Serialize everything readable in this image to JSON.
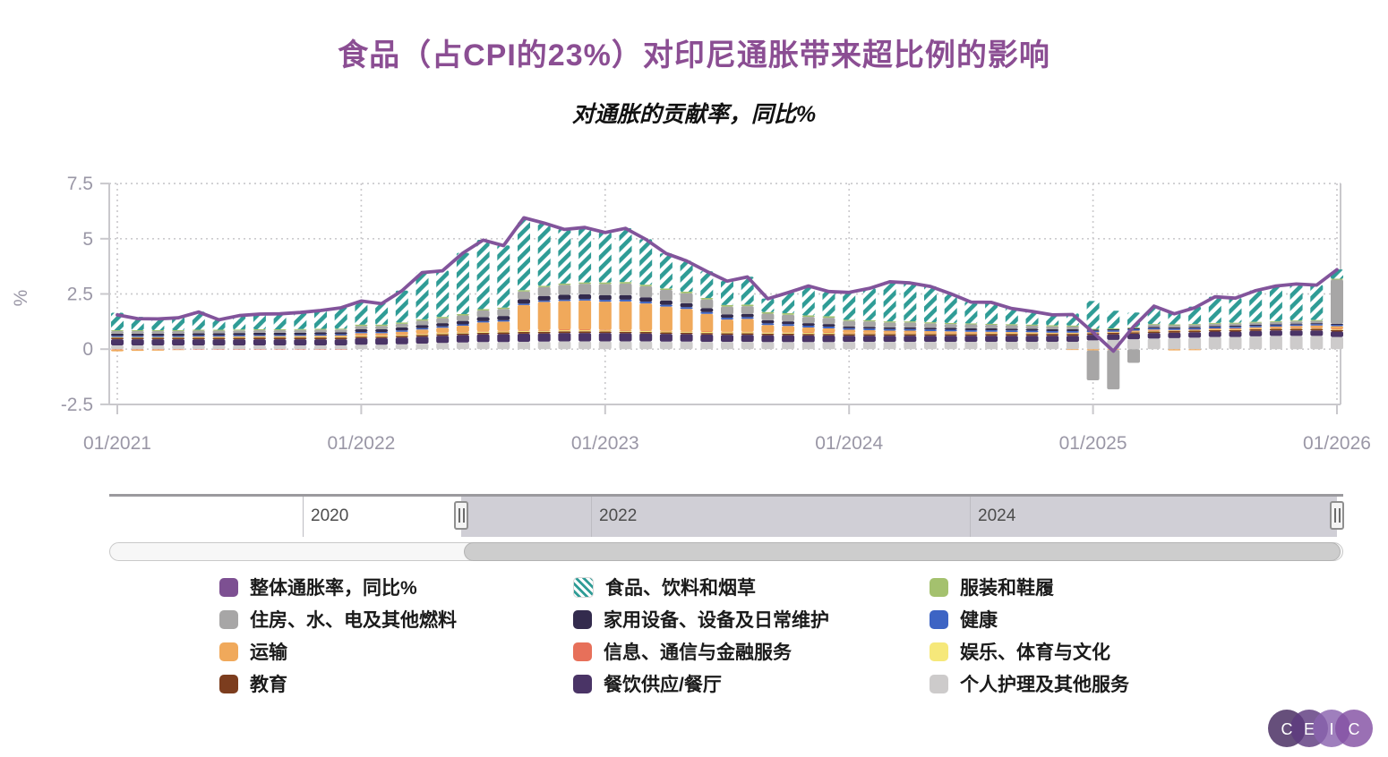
{
  "title": "食品（占CPI的23%）对印尼通胀带来超比例的影响",
  "subtitle": "对通胀的贡献率，同比%",
  "colors": {
    "title": "#8B4E93",
    "axis_label": "#9A97A6",
    "axis_line": "#C9C8CC",
    "grid": "#CCCBCE",
    "line": "#82549B",
    "line_legend_swatch": "#7D5092"
  },
  "chart_data": {
    "type": "bar",
    "stacked": true,
    "title": "食品（占CPI的23%）对印尼通胀带来超比例的影响",
    "subtitle": "对通胀的贡献率，同比%",
    "ylabel": "%",
    "ylim": [
      -2.5,
      7.5
    ],
    "y_ticks": [
      "7.5",
      "5",
      "2.5",
      "0",
      "-2.5"
    ],
    "y_tick_values": [
      7.5,
      5,
      2.5,
      0,
      -2.5
    ],
    "x_ticks": [
      "01/2021",
      "01/2022",
      "01/2023",
      "01/2024",
      "01/2025",
      "01/2026"
    ],
    "x_tick_indices": [
      0,
      12,
      24,
      36,
      48,
      60
    ],
    "grid": "dotted",
    "categories": [
      "01/2021",
      "02/2021",
      "03/2021",
      "04/2021",
      "05/2021",
      "06/2021",
      "07/2021",
      "08/2021",
      "09/2021",
      "10/2021",
      "11/2021",
      "12/2021",
      "01/2022",
      "02/2022",
      "03/2022",
      "04/2022",
      "05/2022",
      "06/2022",
      "07/2022",
      "08/2022",
      "09/2022",
      "10/2022",
      "11/2022",
      "12/2022",
      "01/2023",
      "02/2023",
      "03/2023",
      "04/2023",
      "05/2023",
      "06/2023",
      "07/2023",
      "08/2023",
      "09/2023",
      "10/2023",
      "11/2023",
      "12/2023",
      "01/2024",
      "02/2024",
      "03/2024",
      "04/2024",
      "05/2024",
      "06/2024",
      "07/2024",
      "08/2024",
      "09/2024",
      "10/2024",
      "11/2024",
      "12/2024",
      "01/2025",
      "02/2025",
      "03/2025",
      "04/2025",
      "05/2025",
      "06/2025",
      "07/2025",
      "08/2025",
      "09/2025",
      "10/2025",
      "11/2025",
      "12/2025",
      "01/2026"
    ],
    "line": {
      "id": "headline",
      "name": "整体通胀率，同比%",
      "color": "#82549B",
      "legend_swatch": "#7D5092",
      "values": [
        1.55,
        1.38,
        1.37,
        1.42,
        1.68,
        1.33,
        1.52,
        1.59,
        1.6,
        1.66,
        1.75,
        1.87,
        2.18,
        2.06,
        2.64,
        3.47,
        3.55,
        4.35,
        4.94,
        4.69,
        5.95,
        5.71,
        5.42,
        5.51,
        5.28,
        5.47,
        4.97,
        4.33,
        4.0,
        3.52,
        3.08,
        3.27,
        2.28,
        2.56,
        2.86,
        2.61,
        2.57,
        2.75,
        3.05,
        3.0,
        2.84,
        2.51,
        2.13,
        2.12,
        1.84,
        1.71,
        1.55,
        1.57,
        0.76,
        -0.09,
        1.03,
        1.95,
        1.6,
        1.87,
        2.37,
        2.31,
        2.65,
        2.86,
        2.95,
        2.9,
        3.6
      ]
    },
    "stack_order_bottom_to_top": [
      "personal",
      "restaurants",
      "education",
      "recreation",
      "info",
      "transport",
      "health",
      "household",
      "housing",
      "clothing",
      "food"
    ],
    "series": [
      {
        "id": "food",
        "name": "食品、饮料和烟草",
        "color": "#2F9C96",
        "hatch": true,
        "values": [
          0.79,
          0.6,
          0.58,
          0.6,
          0.82,
          0.47,
          0.65,
          0.71,
          0.72,
          0.77,
          0.85,
          0.96,
          1.08,
          0.96,
          1.44,
          2.13,
          2.1,
          2.77,
          3.14,
          2.82,
          3.29,
          2.85,
          2.46,
          2.5,
          2.27,
          2.44,
          2.06,
          1.59,
          1.41,
          1.21,
          1.09,
          1.26,
          0.61,
          0.94,
          1.34,
          1.13,
          1.25,
          1.45,
          1.8,
          1.75,
          1.63,
          1.33,
          0.97,
          0.98,
          0.72,
          0.61,
          0.48,
          0.55,
          1.26,
          0.8,
          0.67,
          0.82,
          0.55,
          0.79,
          1.19,
          1.12,
          1.42,
          1.6,
          1.66,
          1.59,
          0.42
        ]
      },
      {
        "id": "clothing",
        "name": "服装和鞋履",
        "color": "#A4C16E",
        "hatch": false,
        "values": [
          0.04,
          0.04,
          0.04,
          0.04,
          0.04,
          0.04,
          0.04,
          0.04,
          0.04,
          0.04,
          0.04,
          0.04,
          0.06,
          0.06,
          0.06,
          0.06,
          0.06,
          0.06,
          0.06,
          0.06,
          0.06,
          0.06,
          0.06,
          0.06,
          0.07,
          0.07,
          0.07,
          0.07,
          0.07,
          0.07,
          0.07,
          0.07,
          0.07,
          0.07,
          0.07,
          0.07,
          0.05,
          0.05,
          0.05,
          0.05,
          0.05,
          0.05,
          0.05,
          0.05,
          0.05,
          0.05,
          0.05,
          0.05,
          0.04,
          0.04,
          0.04,
          0.04,
          0.04,
          0.04,
          0.04,
          0.04,
          0.04,
          0.04,
          0.04,
          0.04,
          0.04
        ]
      },
      {
        "id": "housing",
        "name": "住房、水、电及其他燃料",
        "color": "#A7A6A6",
        "hatch": false,
        "values": [
          0.12,
          0.12,
          0.12,
          0.12,
          0.12,
          0.12,
          0.12,
          0.12,
          0.12,
          0.12,
          0.12,
          0.12,
          0.15,
          0.15,
          0.17,
          0.2,
          0.22,
          0.25,
          0.3,
          0.32,
          0.35,
          0.4,
          0.45,
          0.48,
          0.5,
          0.52,
          0.5,
          0.48,
          0.45,
          0.4,
          0.35,
          0.35,
          0.3,
          0.3,
          0.28,
          0.28,
          0.25,
          0.25,
          0.22,
          0.22,
          0.2,
          0.18,
          0.18,
          0.16,
          0.15,
          0.14,
          0.13,
          0.12,
          -1.35,
          -1.78,
          -0.62,
          0.1,
          0.1,
          0.1,
          0.1,
          0.1,
          0.1,
          0.1,
          0.1,
          0.1,
          2.0
        ]
      },
      {
        "id": "household",
        "name": "家用设备、设备及日常维护",
        "color": "#332B4D",
        "hatch": false,
        "values": [
          0.1,
          0.1,
          0.1,
          0.1,
          0.1,
          0.1,
          0.1,
          0.1,
          0.1,
          0.1,
          0.1,
          0.1,
          0.12,
          0.12,
          0.13,
          0.14,
          0.15,
          0.16,
          0.18,
          0.19,
          0.2,
          0.21,
          0.22,
          0.22,
          0.22,
          0.21,
          0.2,
          0.19,
          0.18,
          0.17,
          0.16,
          0.15,
          0.14,
          0.13,
          0.12,
          0.12,
          0.08,
          0.08,
          0.08,
          0.08,
          0.08,
          0.08,
          0.08,
          0.08,
          0.08,
          0.08,
          0.08,
          0.08,
          0.05,
          0.05,
          0.05,
          0.05,
          0.05,
          0.05,
          0.05,
          0.05,
          0.05,
          0.05,
          0.05,
          0.05,
          0.05
        ]
      },
      {
        "id": "health",
        "name": "健康",
        "color": "#3D64C4",
        "hatch": false,
        "values": [
          0.05,
          0.05,
          0.05,
          0.05,
          0.05,
          0.05,
          0.05,
          0.05,
          0.05,
          0.05,
          0.05,
          0.05,
          0.06,
          0.06,
          0.06,
          0.06,
          0.06,
          0.06,
          0.06,
          0.06,
          0.06,
          0.06,
          0.06,
          0.06,
          0.08,
          0.08,
          0.08,
          0.08,
          0.08,
          0.08,
          0.08,
          0.08,
          0.08,
          0.08,
          0.08,
          0.08,
          0.07,
          0.07,
          0.07,
          0.07,
          0.07,
          0.07,
          0.07,
          0.07,
          0.07,
          0.07,
          0.07,
          0.07,
          0.06,
          0.06,
          0.06,
          0.06,
          0.06,
          0.06,
          0.06,
          0.06,
          0.06,
          0.06,
          0.06,
          0.06,
          0.06
        ]
      },
      {
        "id": "transport",
        "name": "运输",
        "color": "#F0A95B",
        "hatch": false,
        "values": [
          -0.08,
          -0.06,
          -0.05,
          -0.02,
          0.02,
          0.02,
          0.03,
          0.03,
          0.03,
          0.04,
          0.05,
          0.06,
          0.08,
          0.08,
          0.12,
          0.18,
          0.22,
          0.28,
          0.4,
          0.42,
          1.15,
          1.28,
          1.3,
          1.32,
          1.28,
          1.3,
          1.22,
          1.1,
          1.0,
          0.8,
          0.55,
          0.58,
          0.32,
          0.28,
          0.22,
          0.18,
          0.14,
          0.12,
          0.1,
          0.1,
          0.08,
          0.07,
          0.05,
          0.04,
          0.03,
          0.02,
          0.0,
          -0.04,
          -0.06,
          -0.04,
          0.02,
          0.04,
          -0.06,
          -0.05,
          0.02,
          0.03,
          0.04,
          0.05,
          0.08,
          0.1,
          0.12
        ]
      },
      {
        "id": "info",
        "name": "信息、通信与金融服务",
        "color": "#E7705A",
        "hatch": false,
        "values": [
          -0.02,
          -0.02,
          -0.02,
          -0.02,
          -0.02,
          -0.02,
          -0.02,
          -0.02,
          -0.02,
          -0.02,
          -0.02,
          -0.02,
          0.01,
          0.01,
          0.01,
          0.01,
          0.01,
          0.01,
          0.01,
          0.01,
          0.01,
          0.01,
          0.01,
          0.01,
          0.01,
          0.01,
          0.01,
          0.01,
          0.01,
          0.01,
          0.01,
          0.01,
          0.01,
          0.01,
          0.01,
          0.01,
          0.01,
          0.01,
          0.01,
          0.01,
          0.01,
          0.01,
          0.01,
          0.01,
          0.01,
          0.01,
          0.01,
          0.01,
          0.01,
          0.01,
          0.01,
          0.01,
          0.01,
          0.01,
          0.01,
          0.01,
          0.01,
          0.01,
          0.01,
          0.01,
          0.01
        ]
      },
      {
        "id": "recreation",
        "name": "娱乐、体育与文化",
        "color": "#F6E87A",
        "hatch": false,
        "values": [
          0.03,
          0.03,
          0.03,
          0.03,
          0.03,
          0.03,
          0.03,
          0.03,
          0.03,
          0.03,
          0.03,
          0.03,
          0.06,
          0.06,
          0.06,
          0.06,
          0.06,
          0.06,
          0.06,
          0.06,
          0.06,
          0.06,
          0.06,
          0.06,
          0.06,
          0.06,
          0.06,
          0.06,
          0.06,
          0.06,
          0.06,
          0.06,
          0.06,
          0.06,
          0.06,
          0.06,
          0.05,
          0.05,
          0.05,
          0.05,
          0.05,
          0.05,
          0.05,
          0.05,
          0.05,
          0.05,
          0.05,
          0.05,
          0.04,
          0.04,
          0.04,
          0.04,
          0.04,
          0.04,
          0.04,
          0.04,
          0.04,
          0.04,
          0.04,
          0.04,
          0.04
        ]
      },
      {
        "id": "education",
        "name": "教育",
        "color": "#7C3D1E",
        "hatch": false,
        "values": [
          0.07,
          0.07,
          0.07,
          0.07,
          0.07,
          0.07,
          0.07,
          0.08,
          0.08,
          0.08,
          0.08,
          0.08,
          0.07,
          0.07,
          0.07,
          0.07,
          0.07,
          0.07,
          0.07,
          0.08,
          0.08,
          0.08,
          0.08,
          0.08,
          0.07,
          0.07,
          0.07,
          0.07,
          0.07,
          0.07,
          0.07,
          0.07,
          0.07,
          0.07,
          0.07,
          0.07,
          0.07,
          0.07,
          0.07,
          0.07,
          0.07,
          0.07,
          0.07,
          0.08,
          0.08,
          0.08,
          0.08,
          0.08,
          0.07,
          0.07,
          0.07,
          0.07,
          0.07,
          0.07,
          0.07,
          0.07,
          0.07,
          0.07,
          0.07,
          0.07,
          0.07
        ]
      },
      {
        "id": "restaurants",
        "name": "餐饮供应/餐厅",
        "color": "#4A3466",
        "hatch": false,
        "values": [
          0.28,
          0.28,
          0.28,
          0.28,
          0.28,
          0.28,
          0.28,
          0.28,
          0.28,
          0.28,
          0.28,
          0.28,
          0.3,
          0.3,
          0.31,
          0.32,
          0.33,
          0.34,
          0.35,
          0.36,
          0.37,
          0.37,
          0.38,
          0.38,
          0.38,
          0.37,
          0.36,
          0.35,
          0.34,
          0.33,
          0.32,
          0.32,
          0.31,
          0.31,
          0.3,
          0.3,
          0.28,
          0.28,
          0.28,
          0.28,
          0.28,
          0.28,
          0.28,
          0.28,
          0.28,
          0.28,
          0.28,
          0.28,
          0.25,
          0.25,
          0.25,
          0.25,
          0.25,
          0.25,
          0.25,
          0.25,
          0.25,
          0.25,
          0.25,
          0.25,
          0.25
        ]
      },
      {
        "id": "personal",
        "name": "个人护理及其他服务",
        "color": "#CDCBCB",
        "hatch": false,
        "values": [
          0.17,
          0.17,
          0.17,
          0.17,
          0.17,
          0.17,
          0.17,
          0.17,
          0.17,
          0.17,
          0.17,
          0.17,
          0.2,
          0.2,
          0.22,
          0.25,
          0.28,
          0.3,
          0.32,
          0.32,
          0.33,
          0.34,
          0.35,
          0.35,
          0.35,
          0.35,
          0.35,
          0.34,
          0.34,
          0.33,
          0.33,
          0.33,
          0.32,
          0.32,
          0.32,
          0.32,
          0.33,
          0.33,
          0.33,
          0.33,
          0.33,
          0.33,
          0.33,
          0.33,
          0.33,
          0.33,
          0.33,
          0.33,
          0.4,
          0.42,
          0.45,
          0.48,
          0.5,
          0.52,
          0.55,
          0.55,
          0.58,
          0.6,
          0.6,
          0.6,
          0.55
        ]
      }
    ]
  },
  "navigator": {
    "year_labels": [
      "2020",
      "2022",
      "2024"
    ]
  },
  "legend": {
    "columns": [
      [
        "headline",
        "housing",
        "transport",
        "education"
      ],
      [
        "food",
        "household",
        "info",
        "restaurants"
      ],
      [
        "clothing",
        "health",
        "recreation",
        "personal"
      ]
    ]
  },
  "logo": {
    "letters": [
      "C",
      "E",
      "I",
      "C"
    ]
  }
}
